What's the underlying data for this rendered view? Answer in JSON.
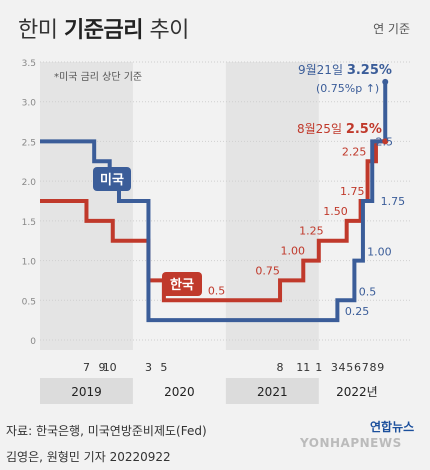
{
  "header": {
    "title_part1": "한미 ",
    "title_bold": "기준금리",
    "title_part2": " 추이",
    "unit": "연 기준"
  },
  "footnote": "*미국 금리 상단 기준",
  "source": "자료: 한국은행, 미국연방준비제도(Fed)",
  "credit": "김영은, 원형민 기자 20220922",
  "logo": {
    "mark": "연합뉴스",
    "sub": "YONHAPNEWS"
  },
  "colors": {
    "us": "#3b5d99",
    "korea": "#c0392b",
    "background": "#f2f2f2",
    "shade": "#e4e4e4"
  },
  "chart_data": {
    "type": "line",
    "title": "한미 기준금리 추이",
    "ylim": [
      0,
      3.5
    ],
    "yticks": [
      "0",
      "0.5",
      "1.0",
      "1.5",
      "2.0",
      "2.5",
      "3.0",
      "3.5"
    ],
    "x_month_ticks": [
      {
        "label": "7",
        "t": 2019.5
      },
      {
        "label": "9",
        "t": 2019.667
      },
      {
        "label": "10",
        "t": 2019.75
      },
      {
        "label": "3",
        "t": 2020.167
      },
      {
        "label": "5",
        "t": 2020.333
      },
      {
        "label": "8",
        "t": 2021.583
      },
      {
        "label": "11",
        "t": 2021.833
      },
      {
        "label": "1",
        "t": 2022.0
      },
      {
        "label": "3",
        "t": 2022.167
      },
      {
        "label": "4",
        "t": 2022.25
      },
      {
        "label": "5",
        "t": 2022.333
      },
      {
        "label": "6",
        "t": 2022.417
      },
      {
        "label": "7",
        "t": 2022.5
      },
      {
        "label": "8",
        "t": 2022.583
      },
      {
        "label": "9",
        "t": 2022.667
      }
    ],
    "x_year_labels": [
      "2019",
      "2020",
      "2021",
      "2022년"
    ],
    "series": [
      {
        "name": "미국",
        "step_points": [
          [
            2019.0,
            2.5
          ],
          [
            2019.583,
            2.5
          ],
          [
            2019.583,
            2.25
          ],
          [
            2019.75,
            2.25
          ],
          [
            2019.75,
            2.0
          ],
          [
            2019.85,
            2.0
          ],
          [
            2019.85,
            1.75
          ],
          [
            2020.167,
            1.75
          ],
          [
            2020.167,
            0.25
          ],
          [
            2022.2,
            0.25
          ],
          [
            2022.2,
            0.5
          ],
          [
            2022.383,
            0.5
          ],
          [
            2022.383,
            1.0
          ],
          [
            2022.475,
            1.0
          ],
          [
            2022.475,
            1.75
          ],
          [
            2022.575,
            1.75
          ],
          [
            2022.575,
            2.5
          ],
          [
            2022.715,
            2.5
          ],
          [
            2022.715,
            3.25
          ]
        ],
        "value_labels": [
          "0.25",
          "0.5",
          "1.00",
          "1.75",
          "2.5"
        ],
        "highlight_date": "9월21일",
        "highlight_value": "3.25%",
        "highlight_note": "(0.75%p ↑)"
      },
      {
        "name": "한국",
        "step_points": [
          [
            2019.0,
            1.75
          ],
          [
            2019.5,
            1.75
          ],
          [
            2019.5,
            1.5
          ],
          [
            2019.783,
            1.5
          ],
          [
            2019.783,
            1.25
          ],
          [
            2020.167,
            1.25
          ],
          [
            2020.167,
            0.75
          ],
          [
            2020.333,
            0.75
          ],
          [
            2020.333,
            0.5
          ],
          [
            2021.583,
            0.5
          ],
          [
            2021.583,
            0.75
          ],
          [
            2021.833,
            0.75
          ],
          [
            2021.833,
            1.0
          ],
          [
            2022.0,
            1.0
          ],
          [
            2022.0,
            1.25
          ],
          [
            2022.3,
            1.25
          ],
          [
            2022.3,
            1.5
          ],
          [
            2022.45,
            1.5
          ],
          [
            2022.45,
            1.75
          ],
          [
            2022.525,
            1.75
          ],
          [
            2022.525,
            2.25
          ],
          [
            2022.615,
            2.25
          ],
          [
            2022.615,
            2.5
          ],
          [
            2022.715,
            2.5
          ]
        ],
        "value_labels": [
          "0.5",
          "0.75",
          "1.00",
          "1.25",
          "1.50",
          "1.75",
          "2.25"
        ],
        "highlight_date": "8월25일",
        "highlight_value": "2.5%"
      }
    ]
  }
}
